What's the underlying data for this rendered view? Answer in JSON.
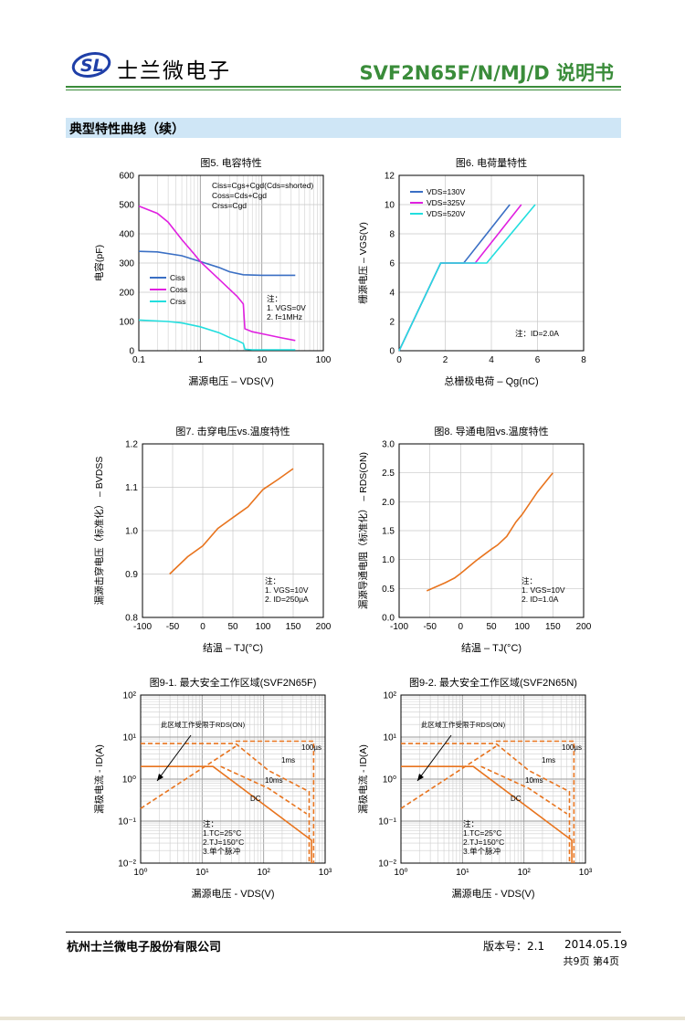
{
  "header": {
    "logo_text": "SL",
    "company": "士兰微电子",
    "doc_title": "SVF2N65F/N/MJ/D 说明书"
  },
  "section_title": "典型特性曲线（续）",
  "chart_data": [
    {
      "type": "line",
      "title": "图5. 电容特性",
      "xlabel": "漏源电压 – VDS(V)",
      "ylabel": "电容(pF)",
      "xscale": "log",
      "xlim": [
        0.1,
        100
      ],
      "ylim": [
        0,
        600
      ],
      "x_ticks": [
        "0.1",
        "1",
        "10",
        "100"
      ],
      "y_ticks": [
        "0",
        "100",
        "200",
        "300",
        "400",
        "500",
        "600"
      ],
      "series": [
        {
          "name": "Ciss",
          "color": "#3a6fc4",
          "points": [
            [
              0.1,
              340
            ],
            [
              0.2,
              338
            ],
            [
              0.5,
              325
            ],
            [
              1,
              305
            ],
            [
              2,
              285
            ],
            [
              3,
              270
            ],
            [
              5,
              260
            ],
            [
              10,
              258
            ],
            [
              35,
              258
            ]
          ]
        },
        {
          "name": "Coss",
          "color": "#e020e0",
          "points": [
            [
              0.1,
              495
            ],
            [
              0.2,
              470
            ],
            [
              0.3,
              440
            ],
            [
              0.5,
              380
            ],
            [
              0.8,
              330
            ],
            [
              1,
              305
            ],
            [
              2,
              245
            ],
            [
              3,
              210
            ],
            [
              4,
              185
            ],
            [
              5,
              160
            ],
            [
              5.3,
              75
            ],
            [
              7,
              65
            ],
            [
              10,
              58
            ],
            [
              20,
              45
            ],
            [
              35,
              35
            ]
          ]
        },
        {
          "name": "Crss",
          "color": "#22dede",
          "points": [
            [
              0.1,
              105
            ],
            [
              0.3,
              100
            ],
            [
              0.5,
              95
            ],
            [
              1,
              82
            ],
            [
              2,
              62
            ],
            [
              3,
              45
            ],
            [
              4,
              35
            ],
            [
              5,
              25
            ],
            [
              5.3,
              5
            ],
            [
              7,
              3
            ],
            [
              35,
              3
            ]
          ]
        }
      ],
      "annotation_lines": [
        "Ciss=Cgs+Cgd(Cds=shorted)",
        "Coss=Cds+Cgd",
        "Crss=Cgd"
      ],
      "notes": [
        "注：",
        "1. VGS=0V",
        "2. f=1MHz"
      ]
    },
    {
      "type": "line",
      "title": "图6. 电荷量特性",
      "xlabel": "总栅极电荷 – Qg(nC)",
      "ylabel": "栅源电压 – VGS(V)",
      "xlim": [
        0,
        8
      ],
      "ylim": [
        0,
        12
      ],
      "x_ticks": [
        "0",
        "2",
        "4",
        "6",
        "8"
      ],
      "y_ticks": [
        "0",
        "2",
        "4",
        "6",
        "8",
        "10",
        "12"
      ],
      "series": [
        {
          "name": "VDS=130V",
          "color": "#3a6fc4",
          "points": [
            [
              0,
              0
            ],
            [
              1.8,
              6
            ],
            [
              2.8,
              6
            ],
            [
              4.8,
              10
            ]
          ]
        },
        {
          "name": "VDS=325V",
          "color": "#e020e0",
          "points": [
            [
              0,
              0
            ],
            [
              1.8,
              6
            ],
            [
              3.3,
              6
            ],
            [
              5.3,
              10
            ]
          ]
        },
        {
          "name": "VDS=520V",
          "color": "#22dede",
          "points": [
            [
              0,
              0
            ],
            [
              1.8,
              6
            ],
            [
              3.8,
              6
            ],
            [
              5.9,
              10
            ]
          ]
        }
      ],
      "notes": [
        "注：ID=2.0A"
      ]
    },
    {
      "type": "line",
      "title": "图7. 击穿电压vs.温度特性",
      "xlabel": "结温 – TJ(°C)",
      "ylabel": "漏源击穿电压（标准化） – BVDSS",
      "xlim": [
        -100,
        200
      ],
      "ylim": [
        0.8,
        1.2
      ],
      "x_ticks": [
        "-100",
        "-50",
        "0",
        "50",
        "100",
        "150",
        "200"
      ],
      "y_ticks": [
        "0.8",
        "0.9",
        "1.0",
        "1.1",
        "1.2"
      ],
      "series": [
        {
          "name": "BVDSS",
          "color": "#e8741e",
          "points": [
            [
              -55,
              0.9
            ],
            [
              -25,
              0.94
            ],
            [
              0,
              0.965
            ],
            [
              25,
              1.005
            ],
            [
              50,
              1.03
            ],
            [
              75,
              1.055
            ],
            [
              100,
              1.095
            ],
            [
              125,
              1.118
            ],
            [
              150,
              1.143
            ]
          ]
        }
      ],
      "notes": [
        "注：",
        "1. VGS=10V",
        "2. ID=250µA"
      ]
    },
    {
      "type": "line",
      "title": "图8. 导通电阻vs.温度特性",
      "xlabel": "结温 – TJ(°C)",
      "ylabel": "漏源导通电阻（标准化） – RDS(ON)",
      "xlim": [
        -100,
        200
      ],
      "ylim": [
        0,
        3
      ],
      "x_ticks": [
        "-100",
        "-50",
        "0",
        "50",
        "100",
        "150",
        "200"
      ],
      "y_ticks": [
        "0.0",
        "0.5",
        "1.0",
        "1.5",
        "2.0",
        "2.5",
        "3.0"
      ],
      "series": [
        {
          "name": "RDS(ON)",
          "color": "#e8741e",
          "points": [
            [
              -55,
              0.46
            ],
            [
              -25,
              0.6
            ],
            [
              -10,
              0.68
            ],
            [
              0,
              0.76
            ],
            [
              25,
              0.98
            ],
            [
              40,
              1.1
            ],
            [
              50,
              1.18
            ],
            [
              60,
              1.25
            ],
            [
              75,
              1.4
            ],
            [
              90,
              1.65
            ],
            [
              100,
              1.78
            ],
            [
              125,
              2.17
            ],
            [
              150,
              2.5
            ]
          ]
        }
      ],
      "notes": [
        "注：",
        "1. VGS=10V",
        "2. ID=1.0A"
      ]
    },
    {
      "type": "line",
      "title": "图9-1. 最大安全工作区域(SVF2N65F)",
      "xlabel": "漏源电压 - VDS(V)",
      "ylabel": "漏极电流 - ID(A)",
      "xscale": "log",
      "yscale": "log",
      "xlim": [
        1,
        1000
      ],
      "ylim": [
        0.01,
        100
      ],
      "x_ticks": [
        "10⁰",
        "10¹",
        "10²",
        "10³"
      ],
      "y_ticks": [
        "10⁻²",
        "10⁻¹",
        "10⁰",
        "10¹",
        "10²"
      ],
      "series": [
        {
          "name": "RDS(ON)限制",
          "color": "#e8741e",
          "dash": true,
          "points": [
            [
              1,
              0.2
            ],
            [
              35,
              6
            ]
          ]
        },
        {
          "name": "100µs",
          "color": "#e8741e",
          "dash": true,
          "points": [
            [
              35,
              8
            ],
            [
              650,
              8
            ],
            [
              650,
              0.01
            ]
          ]
        },
        {
          "name": "1ms",
          "color": "#e8741e",
          "dash": true,
          "points": [
            [
              1,
              7
            ],
            [
              35,
              7
            ],
            [
              120,
              1.6
            ],
            [
              550,
              0.5
            ],
            [
              550,
              0.01
            ]
          ]
        },
        {
          "name": "10ms",
          "color": "#e8741e",
          "dash": true,
          "points": [
            [
              20,
              2
            ],
            [
              120,
              0.6
            ],
            [
              500,
              0.15
            ]
          ]
        },
        {
          "name": "DC",
          "color": "#e8741e",
          "dash": false,
          "points": [
            [
              1,
              2
            ],
            [
              15,
              2
            ],
            [
              600,
              0.035
            ],
            [
              600,
              0.01
            ]
          ]
        }
      ],
      "labels": [
        "此区域工作受限于RDS(ON)",
        "100µs",
        "1ms",
        "10ms",
        "DC"
      ],
      "notes": [
        "注：",
        "1.TC=25°C",
        "2.TJ=150°C",
        "3.单个脉冲"
      ]
    },
    {
      "type": "line",
      "title": "图9-2. 最大安全工作区域(SVF2N65N)",
      "xlabel": "漏源电压 - VDS(V)",
      "ylabel": "漏极电流 - ID(A)",
      "xscale": "log",
      "yscale": "log",
      "xlim": [
        1,
        1000
      ],
      "ylim": [
        0.01,
        100
      ],
      "x_ticks": [
        "10⁰",
        "10¹",
        "10²",
        "10³"
      ],
      "y_ticks": [
        "10⁻²",
        "10⁻¹",
        "10⁰",
        "10¹",
        "10²"
      ],
      "series": [
        {
          "name": "RDS(ON)限制",
          "color": "#e8741e",
          "dash": true,
          "points": [
            [
              1,
              0.2
            ],
            [
              35,
              6
            ]
          ]
        },
        {
          "name": "100µs",
          "color": "#e8741e",
          "dash": true,
          "points": [
            [
              35,
              8
            ],
            [
              650,
              8
            ],
            [
              650,
              0.01
            ]
          ]
        },
        {
          "name": "1ms",
          "color": "#e8741e",
          "dash": true,
          "points": [
            [
              1,
              7
            ],
            [
              35,
              7
            ],
            [
              120,
              1.6
            ],
            [
              550,
              0.5
            ],
            [
              550,
              0.01
            ]
          ]
        },
        {
          "name": "10ms",
          "color": "#e8741e",
          "dash": true,
          "points": [
            [
              20,
              2
            ],
            [
              120,
              0.6
            ],
            [
              500,
              0.15
            ]
          ]
        },
        {
          "name": "DC",
          "color": "#e8741e",
          "dash": false,
          "points": [
            [
              1,
              2
            ],
            [
              15,
              2
            ],
            [
              600,
              0.035
            ],
            [
              600,
              0.01
            ]
          ]
        }
      ],
      "labels": [
        "此区域工作受限于RDS(ON)",
        "100µs",
        "1ms",
        "10ms",
        "DC"
      ],
      "notes": [
        "注：",
        "1.TC=25°C",
        "2.TJ=150°C",
        "3.单个脉冲"
      ]
    }
  ],
  "footer": {
    "company": "杭州士兰微电子股份有限公司",
    "version": "版本号：2.1",
    "date": "2014.05.19",
    "page": "共9页  第4页"
  },
  "colors": {
    "brand_green": "#3a8c3a",
    "section_bar": "#cfe6f6",
    "logo_blue": "#1f3fa8"
  }
}
